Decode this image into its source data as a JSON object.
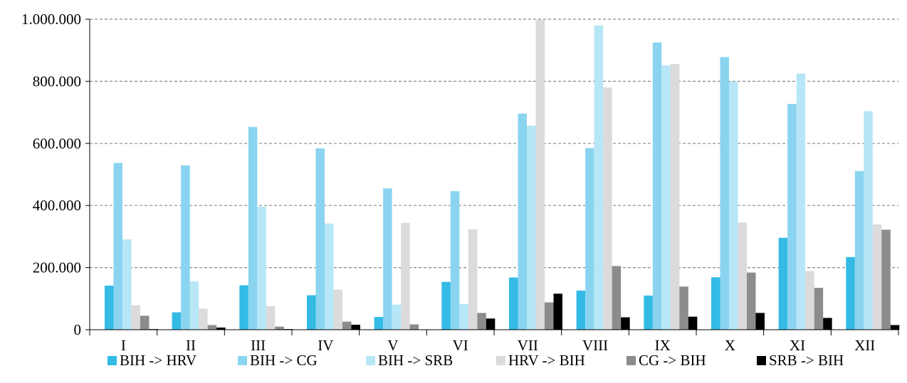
{
  "chart_data": {
    "type": "bar",
    "title": "",
    "xlabel": "",
    "ylabel": "",
    "ylim": [
      0,
      1000000
    ],
    "yticks": [
      0,
      200000,
      400000,
      600000,
      800000,
      1000000
    ],
    "ytick_labels": [
      "0",
      "200.000",
      "400.000",
      "600.000",
      "800.000",
      "1.000.000"
    ],
    "grid": "horizontal dashed",
    "legend_position": "bottom",
    "categories": [
      "I",
      "II",
      "III",
      "IV",
      "V",
      "VI",
      "VII",
      "VIII",
      "IX",
      "X",
      "XI",
      "XII"
    ],
    "series": [
      {
        "name": "BIH -> HRV",
        "color": "#33bbe6",
        "values": [
          142000,
          56000,
          143000,
          111000,
          41000,
          154000,
          168000,
          126000,
          110000,
          169000,
          296000,
          234000
        ]
      },
      {
        "name": "BIH -> CG",
        "color": "#8ad4f0",
        "values": [
          537000,
          529000,
          653000,
          584000,
          455000,
          446000,
          696000,
          585000,
          925000,
          878000,
          727000,
          511000
        ]
      },
      {
        "name": "BIH -> SRB",
        "color": "#b7e7f7",
        "values": [
          291000,
          156000,
          396000,
          342000,
          81000,
          83000,
          657000,
          980000,
          851000,
          799000,
          825000,
          704000
        ]
      },
      {
        "name": "HRV -> BIH",
        "color": "#dcdada",
        "values": [
          79000,
          68000,
          76000,
          129000,
          344000,
          323000,
          998000,
          780000,
          856000,
          345000,
          189000,
          339000
        ]
      },
      {
        "name": "CG -> BIH",
        "color": "#8c8c8c",
        "values": [
          45000,
          15000,
          10000,
          26000,
          17000,
          54000,
          88000,
          205000,
          139000,
          184000,
          135000,
          322000
        ]
      },
      {
        "name": "SRB -> BIH",
        "color": "#000000",
        "values": [
          2000,
          7000,
          2000,
          16000,
          0,
          36000,
          116000,
          40000,
          42000,
          54000,
          38000,
          15000
        ]
      }
    ]
  }
}
